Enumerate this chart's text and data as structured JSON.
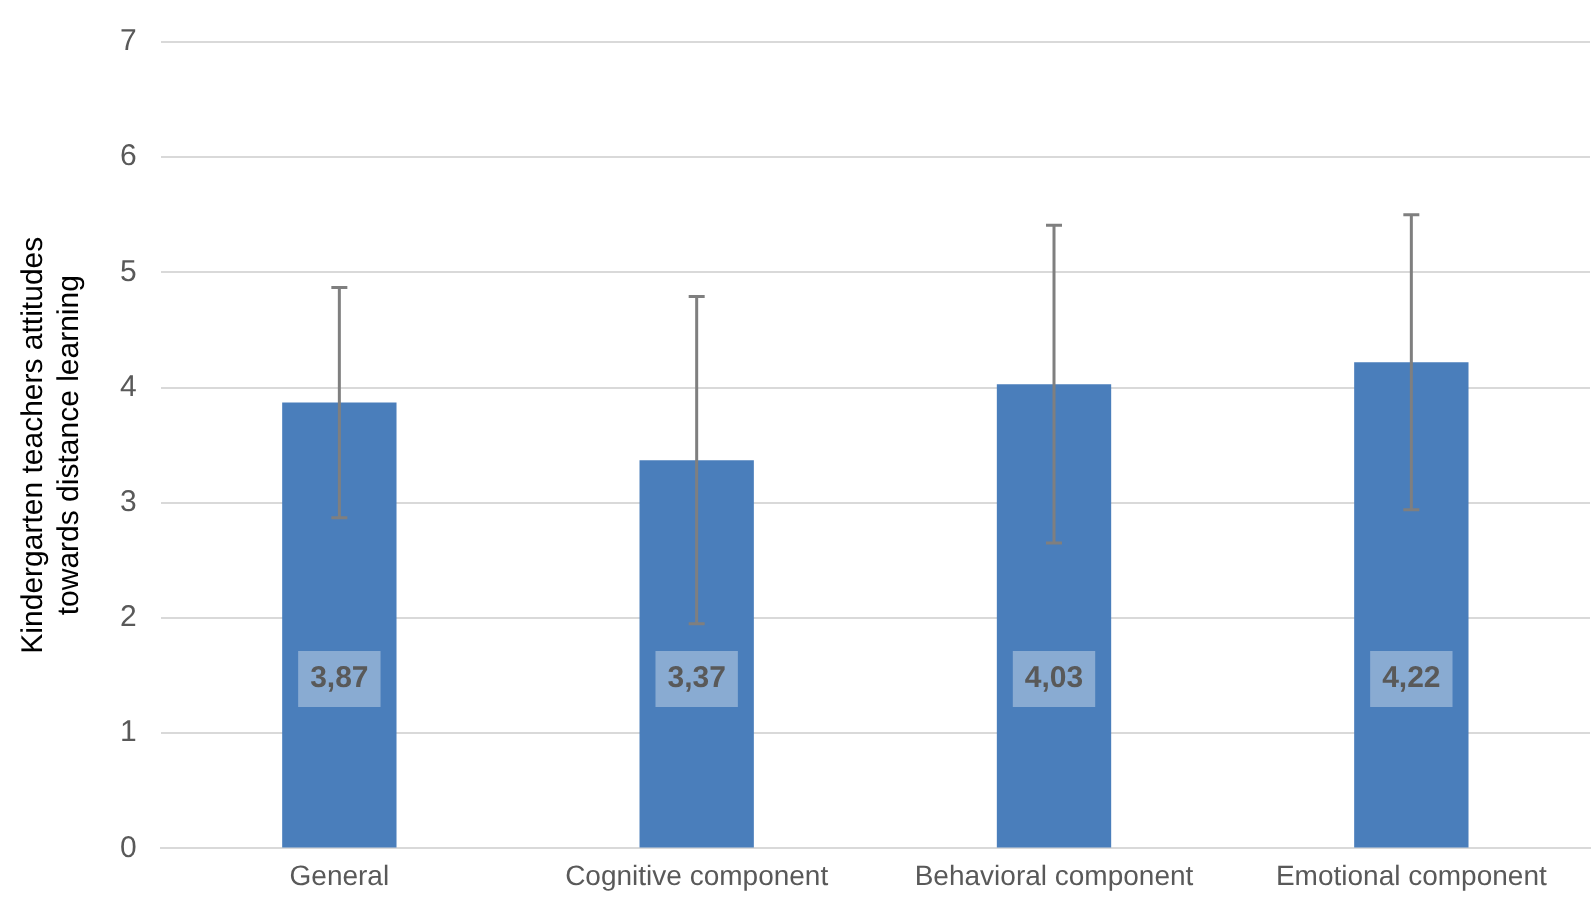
{
  "chart_data": {
    "type": "bar",
    "ylabel": "Kindergarten teachers attitudes towards distance learning",
    "categories": [
      "General",
      "Cognitive component",
      "Behavioral component",
      "Emotional component"
    ],
    "series": [
      {
        "color": "#4a7ebb",
        "values": [
          3.87,
          3.37,
          4.03,
          4.22
        ],
        "errors": [
          1.0,
          1.42,
          1.38,
          1.28
        ],
        "value_labels": [
          "3,87",
          "3,37",
          "4,03",
          "4,22"
        ]
      }
    ],
    "ylim": [
      0,
      7
    ],
    "yticks": [
      0,
      1,
      2,
      3,
      4,
      5,
      6,
      7
    ],
    "grid": "y",
    "legend": false
  }
}
